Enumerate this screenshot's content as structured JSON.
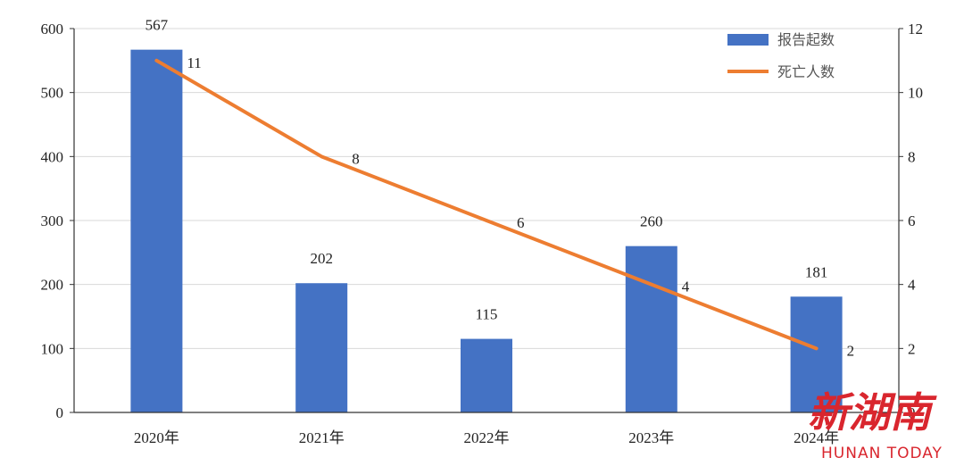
{
  "chart_data": {
    "type": "bar+line",
    "categories": [
      "2020年",
      "2021年",
      "2022年",
      "2023年",
      "2024年"
    ],
    "series": [
      {
        "name": "报告起数",
        "type": "bar",
        "axis": "left",
        "values": [
          567,
          202,
          115,
          260,
          181
        ],
        "color": "#4472C4"
      },
      {
        "name": "死亡人数",
        "type": "line",
        "axis": "right",
        "values": [
          11,
          8,
          6,
          4,
          2
        ],
        "color": "#ED7D31"
      }
    ],
    "y_left": {
      "ticks": [
        "0",
        "100",
        "200",
        "300",
        "400",
        "500",
        "600"
      ],
      "ylim": [
        0,
        600
      ]
    },
    "y_right": {
      "ticks": [
        "0",
        "2",
        "4",
        "6",
        "8",
        "10",
        "12"
      ],
      "ylim": [
        0,
        12
      ]
    },
    "grid": true,
    "legend": "top-right",
    "title": "",
    "xlabel": "",
    "ylabel": ""
  },
  "watermark": {
    "chinese": "新湖南",
    "english": "HUNAN TODAY",
    "color": "#d9262e"
  }
}
